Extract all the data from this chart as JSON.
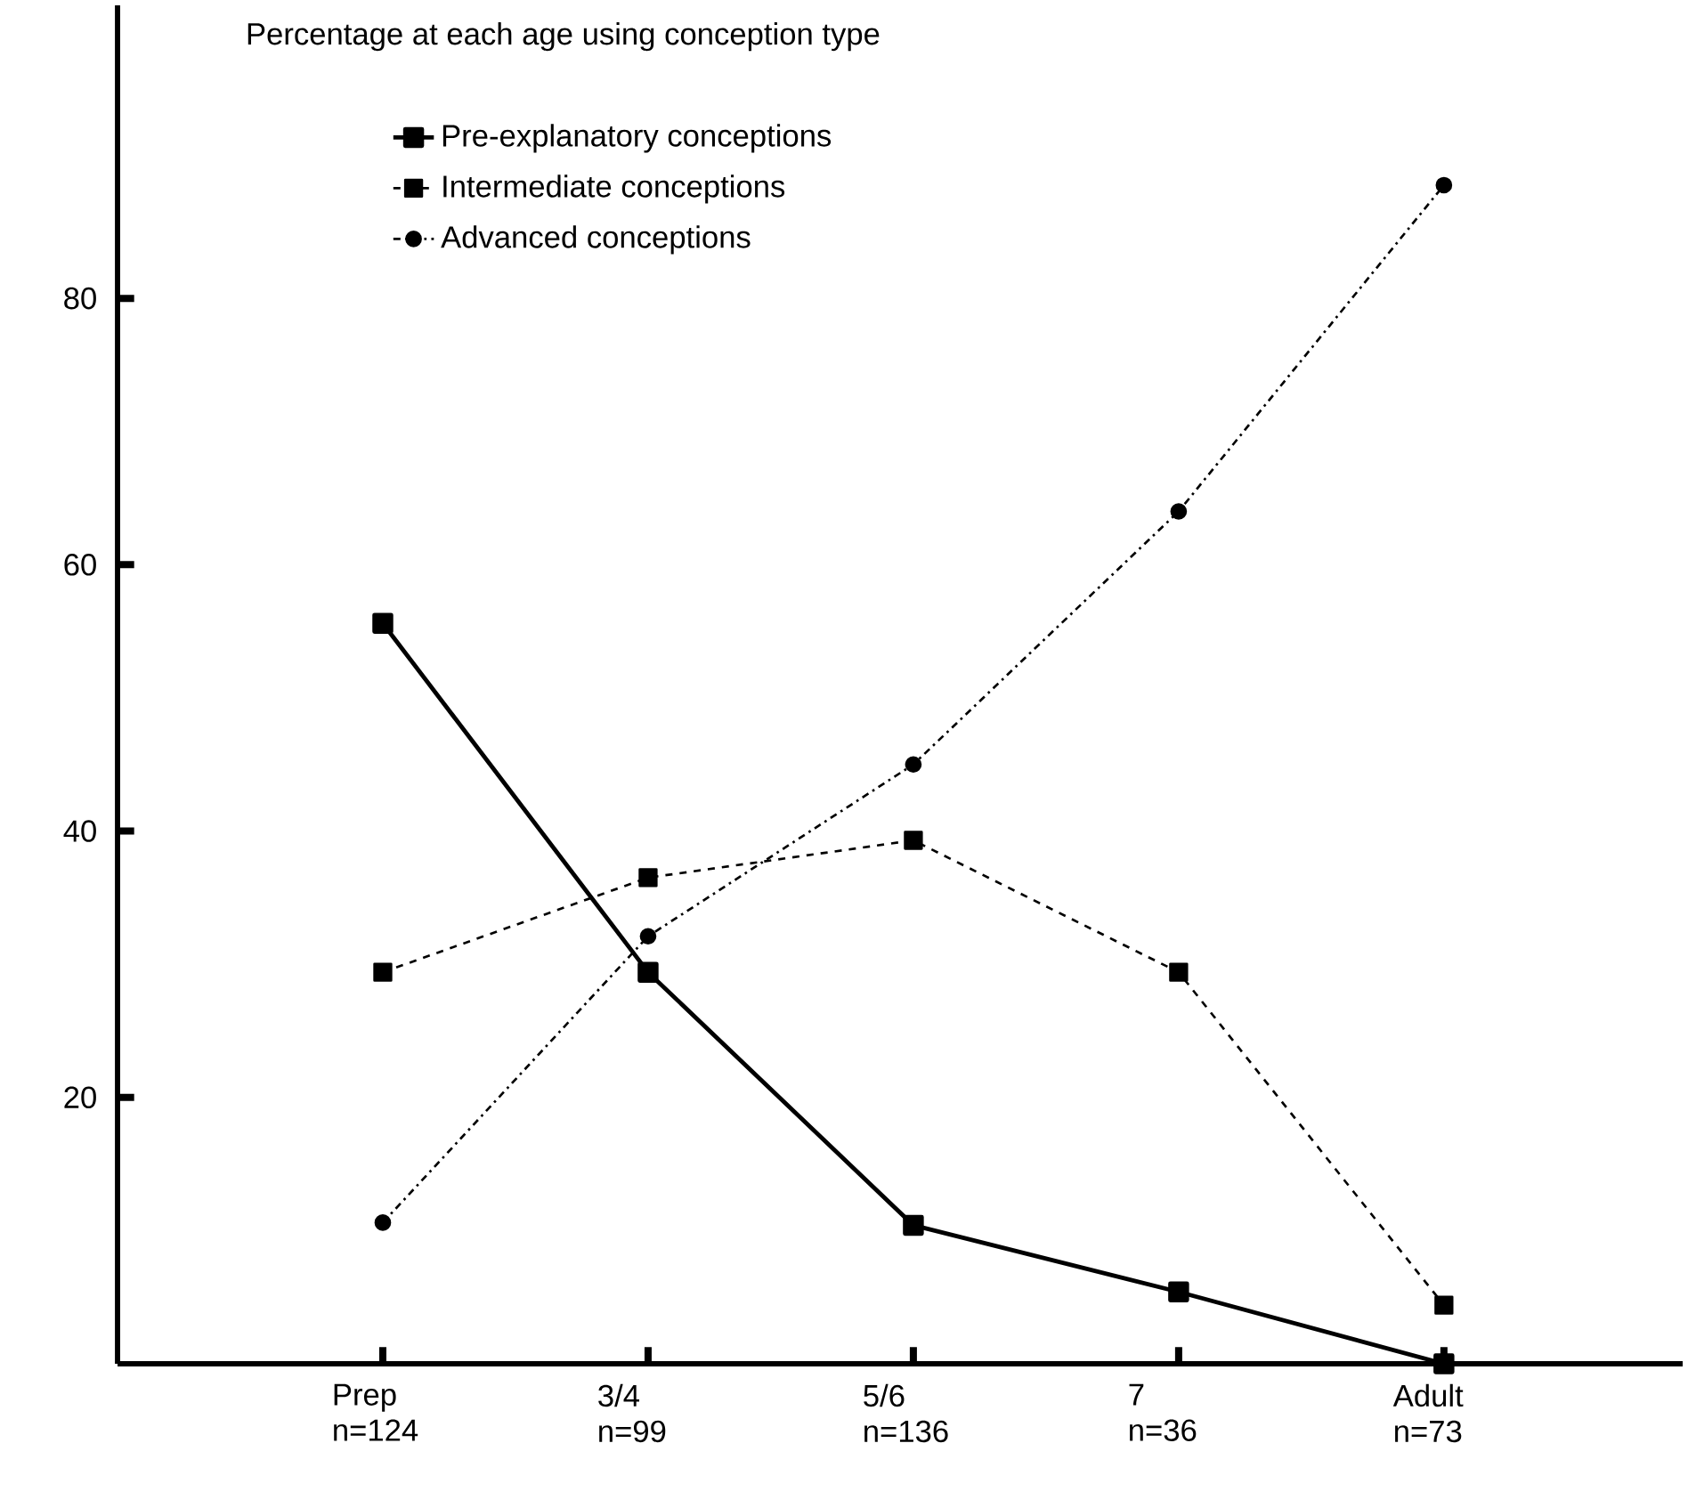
{
  "chart_data": {
    "type": "line",
    "title": "Percentage at each age using conception type",
    "categories": [
      "Prep n=124",
      "3/4 n=99",
      "5/6 n=136",
      "7 n=36",
      "Adult n=73"
    ],
    "series": [
      {
        "name": "Pre-explanatory conceptions",
        "color": "#000000",
        "marker": "square",
        "line_style": "solid",
        "values": [
          55.6,
          29.4,
          10.4,
          5.4,
          0
        ]
      },
      {
        "name": "Intermediate conceptions",
        "color": "#000000",
        "marker": "square",
        "line_style": "dashed",
        "values": [
          29.4,
          36.5,
          39.3,
          29.4,
          4.4
        ]
      },
      {
        "name": "Advanced conceptions",
        "color": "#000000",
        "marker": "circle",
        "line_style": "dotted",
        "values": [
          10.6,
          32.1,
          45,
          64,
          88.5
        ]
      }
    ],
    "ylim": [
      0,
      102
    ],
    "yticks": [
      20,
      40,
      60,
      80
    ],
    "legend": "top left",
    "grid": false
  }
}
